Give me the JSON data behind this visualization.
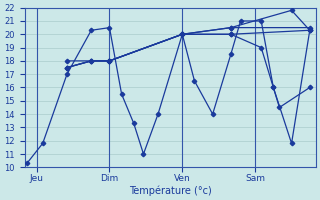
{
  "xlabel": "Température (°c)",
  "bg_color": "#cce8e8",
  "line_color": "#1a3a9c",
  "grid_color": "#aacccc",
  "ylim": [
    10,
    22
  ],
  "yticks": [
    10,
    11,
    12,
    13,
    14,
    15,
    16,
    17,
    18,
    19,
    20,
    21,
    22
  ],
  "x_ticks_labels": [
    "Jeu",
    "Dim",
    "Ven",
    "Sam"
  ],
  "x_ticks_pos": [
    1,
    7,
    13,
    19
  ],
  "x_vlines": [
    1,
    7,
    13,
    19
  ],
  "xlim": [
    0,
    24
  ],
  "series": [
    {
      "x": [
        0.2,
        1.5,
        3.5,
        5.5,
        7.0,
        8.0,
        9.0,
        9.8,
        11.0,
        13.0,
        14.0,
        15.5,
        17.0,
        17.8,
        19.5,
        20.5,
        22.0,
        23.5
      ],
      "y": [
        10.3,
        11.8,
        17.0,
        20.3,
        20.5,
        15.5,
        13.3,
        11.0,
        14.0,
        20.0,
        16.5,
        14.0,
        18.5,
        21.0,
        21.0,
        16.0,
        11.8,
        20.3
      ]
    },
    {
      "x": [
        3.5,
        5.5,
        7.0,
        13.0,
        17.0,
        23.5
      ],
      "y": [
        17.5,
        18.0,
        18.0,
        20.0,
        20.0,
        20.3
      ]
    },
    {
      "x": [
        3.5,
        5.5,
        7.0,
        13.0,
        17.0,
        23.5
      ],
      "y": [
        17.5,
        18.0,
        18.0,
        20.0,
        20.5,
        20.5
      ]
    },
    {
      "x": [
        3.5,
        5.5,
        7.0,
        13.0,
        17.0,
        22.0,
        23.5
      ],
      "y": [
        17.5,
        18.0,
        18.0,
        20.0,
        20.5,
        21.8,
        20.3
      ]
    },
    {
      "x": [
        3.5,
        7.0,
        13.0,
        17.0,
        19.5,
        20.5,
        21.0,
        23.5
      ],
      "y": [
        18.0,
        18.0,
        20.0,
        20.0,
        19.0,
        16.0,
        14.5,
        16.0
      ]
    }
  ]
}
